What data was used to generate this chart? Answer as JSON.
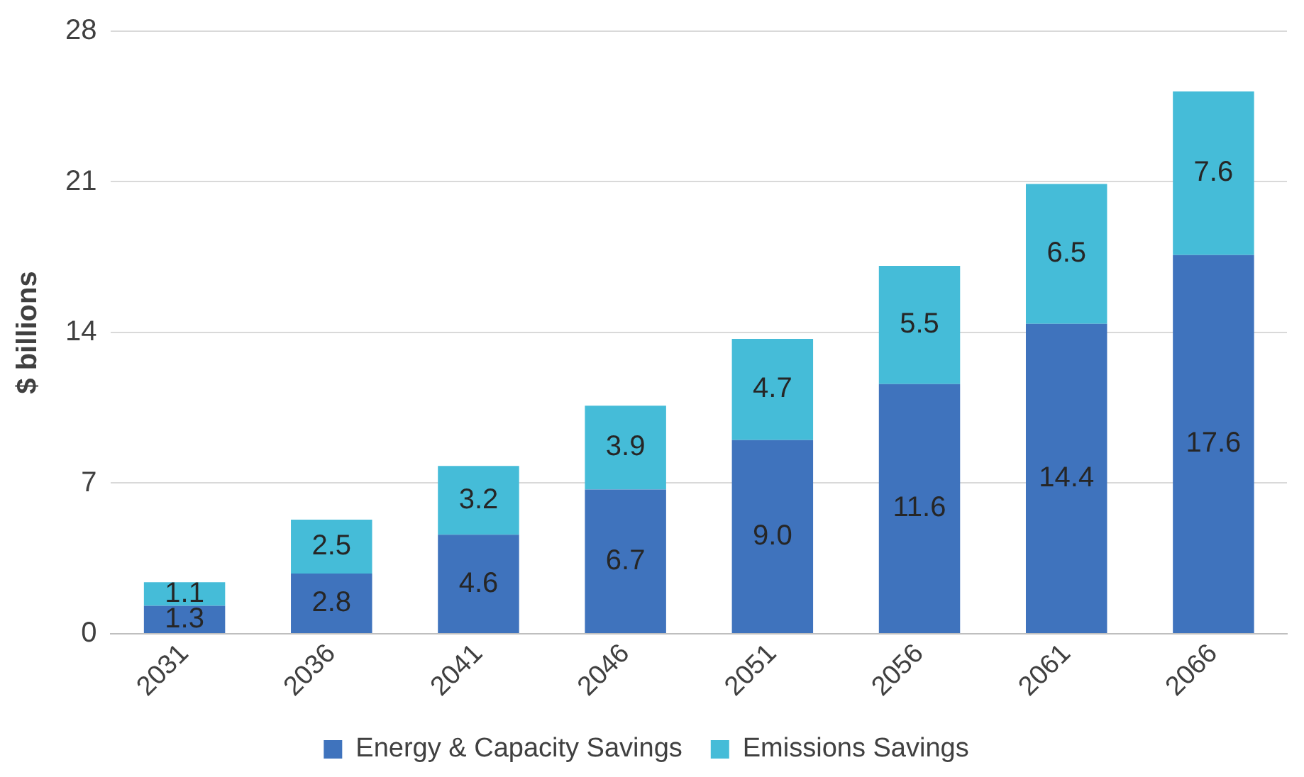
{
  "chart_data": {
    "type": "bar",
    "stacked": true,
    "ylabel": "$ billions",
    "categories": [
      "2031",
      "2036",
      "2041",
      "2046",
      "2051",
      "2056",
      "2061",
      "2066"
    ],
    "series": [
      {
        "name": "Energy & Capacity Savings",
        "color": "#3f73bd",
        "values": [
          1.3,
          2.8,
          4.6,
          6.7,
          9.0,
          11.6,
          14.4,
          17.6
        ],
        "value_labels": [
          "1.3",
          "2.8",
          "4.6",
          "6.7",
          "9.0",
          "11.6",
          "14.4",
          "17.6"
        ]
      },
      {
        "name": "Emissions Savings",
        "color": "#45bcd8",
        "values": [
          1.1,
          2.5,
          3.2,
          3.9,
          4.7,
          5.5,
          6.5,
          7.6
        ],
        "value_labels": [
          "1.1",
          "2.5",
          "3.2",
          "3.9",
          "4.7",
          "5.5",
          "6.5",
          "7.6"
        ]
      }
    ],
    "ylim": [
      0,
      28
    ],
    "yticks": [
      0,
      7,
      14,
      21,
      28
    ],
    "grid": "y",
    "legend": "bottom"
  }
}
